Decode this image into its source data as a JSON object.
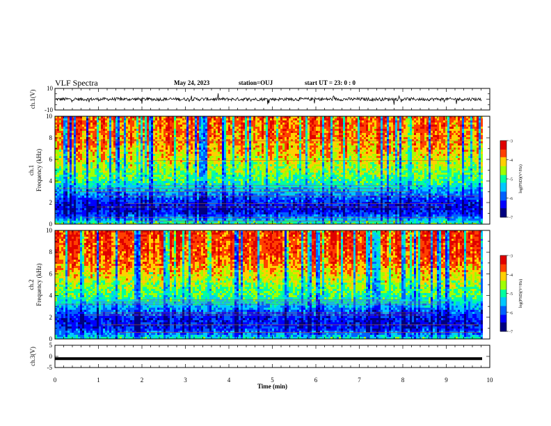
{
  "header": {
    "title": "VLF Spectra",
    "date": "May 24, 2023",
    "station": "station=OUJ",
    "start": "start  UT =   23: 0  : 0"
  },
  "colors": {
    "scale": [
      "#000080",
      "#0000ff",
      "#0060ff",
      "#00c8ff",
      "#00ffa0",
      "#a0ff00",
      "#ffd000",
      "#ff4000",
      "#e00000"
    ],
    "trace": "#000000"
  },
  "chart_data": [
    {
      "type": "line",
      "name": "ch1-waveform",
      "ylabel": "ch.1(V)",
      "ylim": [
        -10,
        10
      ],
      "yticks": [
        "10",
        "-10"
      ],
      "xlim": [
        0,
        10
      ],
      "baseline": 0,
      "amplitude": 3,
      "grid": false
    },
    {
      "type": "heatmap",
      "name": "ch1-spectrogram",
      "ylabel1": "ch.1",
      "ylabel2": "Frequency  (kHz)",
      "ylim": [
        0,
        10
      ],
      "yticks": [
        "0",
        "2",
        "4",
        "6",
        "8",
        "10"
      ],
      "xlim": [
        0,
        10
      ],
      "data_end_min": 9.8,
      "color_range": [
        -7,
        -3
      ],
      "colorbar_label": "log(PSD)(V²/Hz)",
      "colorbar_ticks": [
        "-3",
        "-4",
        "-5",
        "-6",
        "-7"
      ],
      "profile_freq_khz": [
        0,
        0.5,
        1,
        1.5,
        2,
        2.5,
        3,
        3.5,
        4,
        5,
        6,
        7,
        8,
        10
      ],
      "profile_log_psd": [
        -4.8,
        -5.6,
        -6.2,
        -6.4,
        -6.2,
        -5.9,
        -5.6,
        -5.3,
        -4.9,
        -4.6,
        -4.3,
        -4.0,
        -3.8,
        -3.7
      ],
      "lines_khz": [
        0.3,
        0.6,
        1.6,
        1.9,
        2.6,
        3.0,
        3.3,
        3.6,
        5.9,
        7.7
      ]
    },
    {
      "type": "heatmap",
      "name": "ch2-spectrogram",
      "ylabel1": "ch.2",
      "ylabel2": "Frequency  (kHz)",
      "ylim": [
        0,
        10
      ],
      "yticks": [
        "0",
        "2",
        "4",
        "6",
        "8",
        "10"
      ],
      "xlim": [
        0,
        10
      ],
      "data_end_min": 9.8,
      "color_range": [
        -7,
        -3
      ],
      "colorbar_label": "log(PSD)(V²/Hz)",
      "colorbar_ticks": [
        "-3",
        "-4",
        "-5",
        "-6",
        "-7"
      ],
      "profile_freq_khz": [
        0,
        0.5,
        1,
        1.5,
        2,
        2.5,
        3,
        3.5,
        4,
        5,
        6,
        7,
        8,
        10
      ],
      "profile_log_psd": [
        -5.0,
        -5.8,
        -6.2,
        -6.3,
        -6.2,
        -5.9,
        -5.5,
        -5.2,
        -4.9,
        -4.6,
        -4.2,
        -3.8,
        -3.6,
        -3.5
      ],
      "lines_khz": [
        0.6,
        1.3,
        2.2,
        2.4,
        3.2,
        3.4,
        3.6
      ]
    },
    {
      "type": "line",
      "name": "ch3-signal",
      "ylabel": "ch.3(V)",
      "ylim": [
        -5,
        5
      ],
      "yticks": [
        "5",
        "0",
        "-5"
      ],
      "xlim": [
        0,
        10
      ],
      "value": -1,
      "xlabel": "Time  (min)",
      "xticks": [
        "0",
        "1",
        "2",
        "3",
        "4",
        "5",
        "6",
        "7",
        "8",
        "9",
        "10"
      ],
      "grid": false
    }
  ]
}
